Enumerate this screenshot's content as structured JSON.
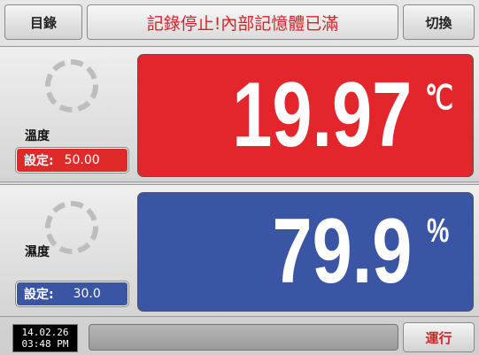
{
  "header": {
    "left_button": "目錄",
    "message": "記錄停止!內部記憶體已滿",
    "right_button": "切換"
  },
  "readings": [
    {
      "label": "溫度",
      "value": "19.97",
      "unit": "℃",
      "setpoint_label": "設定:",
      "setpoint": "50.00"
    },
    {
      "label": "濕度",
      "value": "79.9",
      "unit": "%",
      "setpoint_label": "設定:",
      "setpoint": "30.0"
    }
  ],
  "footer": {
    "date": "14.02.26",
    "time": "03:48 PM",
    "run_button": "運行"
  }
}
